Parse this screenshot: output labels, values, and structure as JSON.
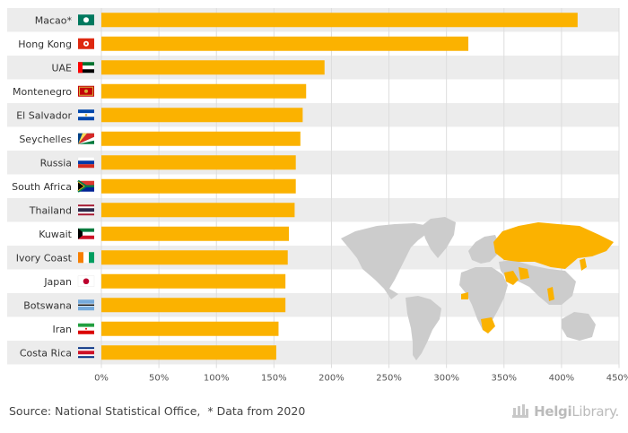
{
  "chart_data": {
    "type": "bar",
    "orientation": "horizontal",
    "categories": [
      "Macao*",
      "Hong Kong",
      "UAE",
      "Montenegro",
      "El Salvador",
      "Seychelles",
      "Russia",
      "South Africa",
      "Thailand",
      "Kuwait",
      "Ivory Coast",
      "Japan",
      "Botswana",
      "Iran",
      "Costa Rica"
    ],
    "values": [
      414,
      319,
      194,
      178,
      175,
      173,
      169,
      169,
      168,
      163,
      162,
      160,
      160,
      154,
      152
    ],
    "unit": "%",
    "xlim": [
      0,
      450
    ],
    "x_ticks": [
      "0%",
      "50%",
      "100%",
      "150%",
      "200%",
      "250%",
      "300%",
      "350%",
      "400%",
      "450%"
    ],
    "title": "",
    "xlabel": "",
    "ylabel": "",
    "grid": true,
    "legend": "none",
    "flags": [
      "macao-flag",
      "hong-kong-flag",
      "uae-flag",
      "montenegro-flag",
      "el-salvador-flag",
      "seychelles-flag",
      "russia-flag",
      "south-africa-flag",
      "thailand-flag",
      "kuwait-flag",
      "ivory-coast-flag",
      "japan-flag",
      "botswana-flag",
      "iran-flag",
      "costa-rica-flag"
    ]
  },
  "colors": {
    "bar": "#FBB200",
    "map_highlight": "#FBB200",
    "map_base": "#cccccc",
    "row_band": "#ececec"
  },
  "footer": {
    "source": "Source: National Statistical Office,",
    "note": "* Data from 2020"
  },
  "brand": {
    "name_bold": "Helgi",
    "name_regular": "Library."
  }
}
